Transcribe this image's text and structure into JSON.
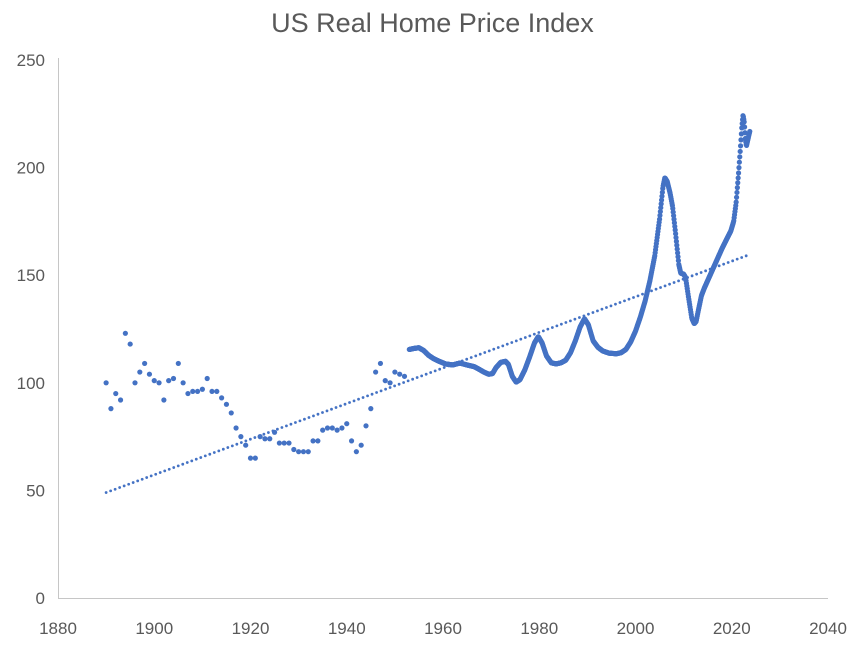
{
  "chart": {
    "title": "US Real Home Price Index"
  },
  "chart_data": {
    "type": "scatter",
    "title": "US Real Home Price Index",
    "xlabel": "",
    "ylabel": "",
    "grid": false,
    "legend": "none",
    "x_axis": {
      "min": 1880,
      "max": 2040,
      "tick_interval": 20,
      "ticks": [
        1880,
        1900,
        1920,
        1940,
        1960,
        1980,
        2000,
        2020,
        2040
      ]
    },
    "y_axis": {
      "min": 0,
      "max": 250,
      "tick_interval": 50,
      "ticks": [
        0,
        50,
        100,
        150,
        200,
        250
      ]
    },
    "colors": {
      "marker": "#4472C4",
      "trendline": "#4472C4",
      "title_text": "#595959",
      "axis_text": "#595959",
      "axis_line": "#C6C6C6"
    },
    "series": [
      {
        "name": "Annual real home price index (1890-1952)",
        "style": "points",
        "marker_radius_px": 2.6,
        "points": [
          [
            1890,
            100
          ],
          [
            1891,
            88
          ],
          [
            1892,
            95
          ],
          [
            1893,
            92
          ],
          [
            1894,
            123
          ],
          [
            1895,
            118
          ],
          [
            1896,
            100
          ],
          [
            1897,
            105
          ],
          [
            1898,
            109
          ],
          [
            1899,
            104
          ],
          [
            1900,
            101
          ],
          [
            1901,
            100
          ],
          [
            1902,
            92
          ],
          [
            1903,
            101
          ],
          [
            1904,
            102
          ],
          [
            1905,
            109
          ],
          [
            1906,
            100
          ],
          [
            1907,
            95
          ],
          [
            1908,
            96
          ],
          [
            1909,
            96
          ],
          [
            1910,
            97
          ],
          [
            1911,
            102
          ],
          [
            1912,
            96
          ],
          [
            1913,
            96
          ],
          [
            1914,
            93
          ],
          [
            1915,
            90
          ],
          [
            1916,
            86
          ],
          [
            1917,
            79
          ],
          [
            1918,
            75
          ],
          [
            1919,
            71
          ],
          [
            1920,
            65
          ],
          [
            1921,
            65
          ],
          [
            1922,
            75
          ],
          [
            1923,
            74
          ],
          [
            1924,
            74
          ],
          [
            1925,
            77
          ],
          [
            1926,
            72
          ],
          [
            1927,
            72
          ],
          [
            1928,
            72
          ],
          [
            1929,
            69
          ],
          [
            1930,
            68
          ],
          [
            1931,
            68
          ],
          [
            1932,
            68
          ],
          [
            1933,
            73
          ],
          [
            1934,
            73
          ],
          [
            1935,
            78
          ],
          [
            1936,
            79
          ],
          [
            1937,
            79
          ],
          [
            1938,
            78
          ],
          [
            1939,
            79
          ],
          [
            1940,
            81
          ],
          [
            1941,
            73
          ],
          [
            1942,
            68
          ],
          [
            1943,
            71
          ],
          [
            1944,
            80
          ],
          [
            1945,
            88
          ],
          [
            1946,
            105
          ],
          [
            1947,
            109
          ],
          [
            1948,
            101
          ],
          [
            1949,
            100
          ],
          [
            1950,
            105
          ],
          [
            1951,
            104
          ],
          [
            1952,
            103
          ]
        ]
      },
      {
        "name": "Monthly real home price index (1953-2023)",
        "style": "dense-points",
        "marker_radius_px": 2.6,
        "points_per_year": 12,
        "breakpoints": [
          [
            1953,
            115.5
          ],
          [
            1954,
            116
          ],
          [
            1955,
            116.3
          ],
          [
            1956,
            115
          ],
          [
            1957,
            112.8
          ],
          [
            1958,
            111.3
          ],
          [
            1959,
            110.2
          ],
          [
            1960.5,
            108.8
          ],
          [
            1962,
            108.3
          ],
          [
            1963.5,
            109.2
          ],
          [
            1965,
            108.3
          ],
          [
            1966.5,
            107.5
          ],
          [
            1967.5,
            106.3
          ],
          [
            1968.5,
            105
          ],
          [
            1969.5,
            104
          ],
          [
            1970.3,
            104.3
          ],
          [
            1971,
            107
          ],
          [
            1972,
            109.5
          ],
          [
            1973,
            110
          ],
          [
            1973.6,
            108.5
          ],
          [
            1974.4,
            103
          ],
          [
            1975.2,
            100.3
          ],
          [
            1976,
            101.5
          ],
          [
            1977,
            106
          ],
          [
            1978,
            112
          ],
          [
            1979,
            118.5
          ],
          [
            1979.8,
            121.5
          ],
          [
            1980.6,
            118.5
          ],
          [
            1981.5,
            112.5
          ],
          [
            1982.5,
            109.3
          ],
          [
            1983.5,
            108.8
          ],
          [
            1984.5,
            109.3
          ],
          [
            1985.5,
            110.5
          ],
          [
            1986.5,
            114
          ],
          [
            1987.5,
            119.5
          ],
          [
            1988.5,
            126
          ],
          [
            1989.4,
            129.8
          ],
          [
            1990.2,
            127
          ],
          [
            1991.2,
            119.5
          ],
          [
            1992.2,
            116.5
          ],
          [
            1993.2,
            114.8
          ],
          [
            1994.5,
            113.8
          ],
          [
            1996,
            113.5
          ],
          [
            1997,
            114
          ],
          [
            1998,
            115.5
          ],
          [
            1999,
            119
          ],
          [
            2000,
            124
          ],
          [
            2001,
            130.5
          ],
          [
            2002,
            138
          ],
          [
            2003,
            147.5
          ],
          [
            2004,
            159
          ],
          [
            2005,
            176
          ],
          [
            2005.7,
            191
          ],
          [
            2006.1,
            195.3
          ],
          [
            2006.6,
            193.5
          ],
          [
            2007.2,
            188
          ],
          [
            2007.7,
            182
          ],
          [
            2008.3,
            170
          ],
          [
            2009,
            155
          ],
          [
            2009.4,
            151
          ],
          [
            2010,
            150.5
          ],
          [
            2010.4,
            149
          ],
          [
            2011,
            140
          ],
          [
            2011.7,
            130
          ],
          [
            2012.2,
            127.5
          ],
          [
            2012.6,
            128.5
          ],
          [
            2013,
            133
          ],
          [
            2013.7,
            140.5
          ],
          [
            2014.3,
            144
          ],
          [
            2015,
            147.5
          ],
          [
            2016,
            152.5
          ],
          [
            2017,
            157.5
          ],
          [
            2018,
            162.5
          ],
          [
            2019,
            167
          ],
          [
            2019.8,
            170.5
          ],
          [
            2020.4,
            175
          ],
          [
            2020.9,
            183.5
          ],
          [
            2021.4,
            197
          ],
          [
            2021.8,
            209
          ],
          [
            2022.1,
            219
          ],
          [
            2022.35,
            224.5
          ],
          [
            2022.6,
            221
          ],
          [
            2022.85,
            213
          ],
          [
            2023.05,
            210
          ],
          [
            2023.3,
            212.5
          ],
          [
            2023.6,
            215.5
          ],
          [
            2023.83,
            217.5
          ]
        ]
      },
      {
        "name": "Linear trend line",
        "style": "dotted-line",
        "dot_radius_px": 1.4,
        "dot_spacing_px": 4.8,
        "points": [
          [
            1890,
            49
          ],
          [
            2023,
            159
          ]
        ]
      }
    ]
  }
}
